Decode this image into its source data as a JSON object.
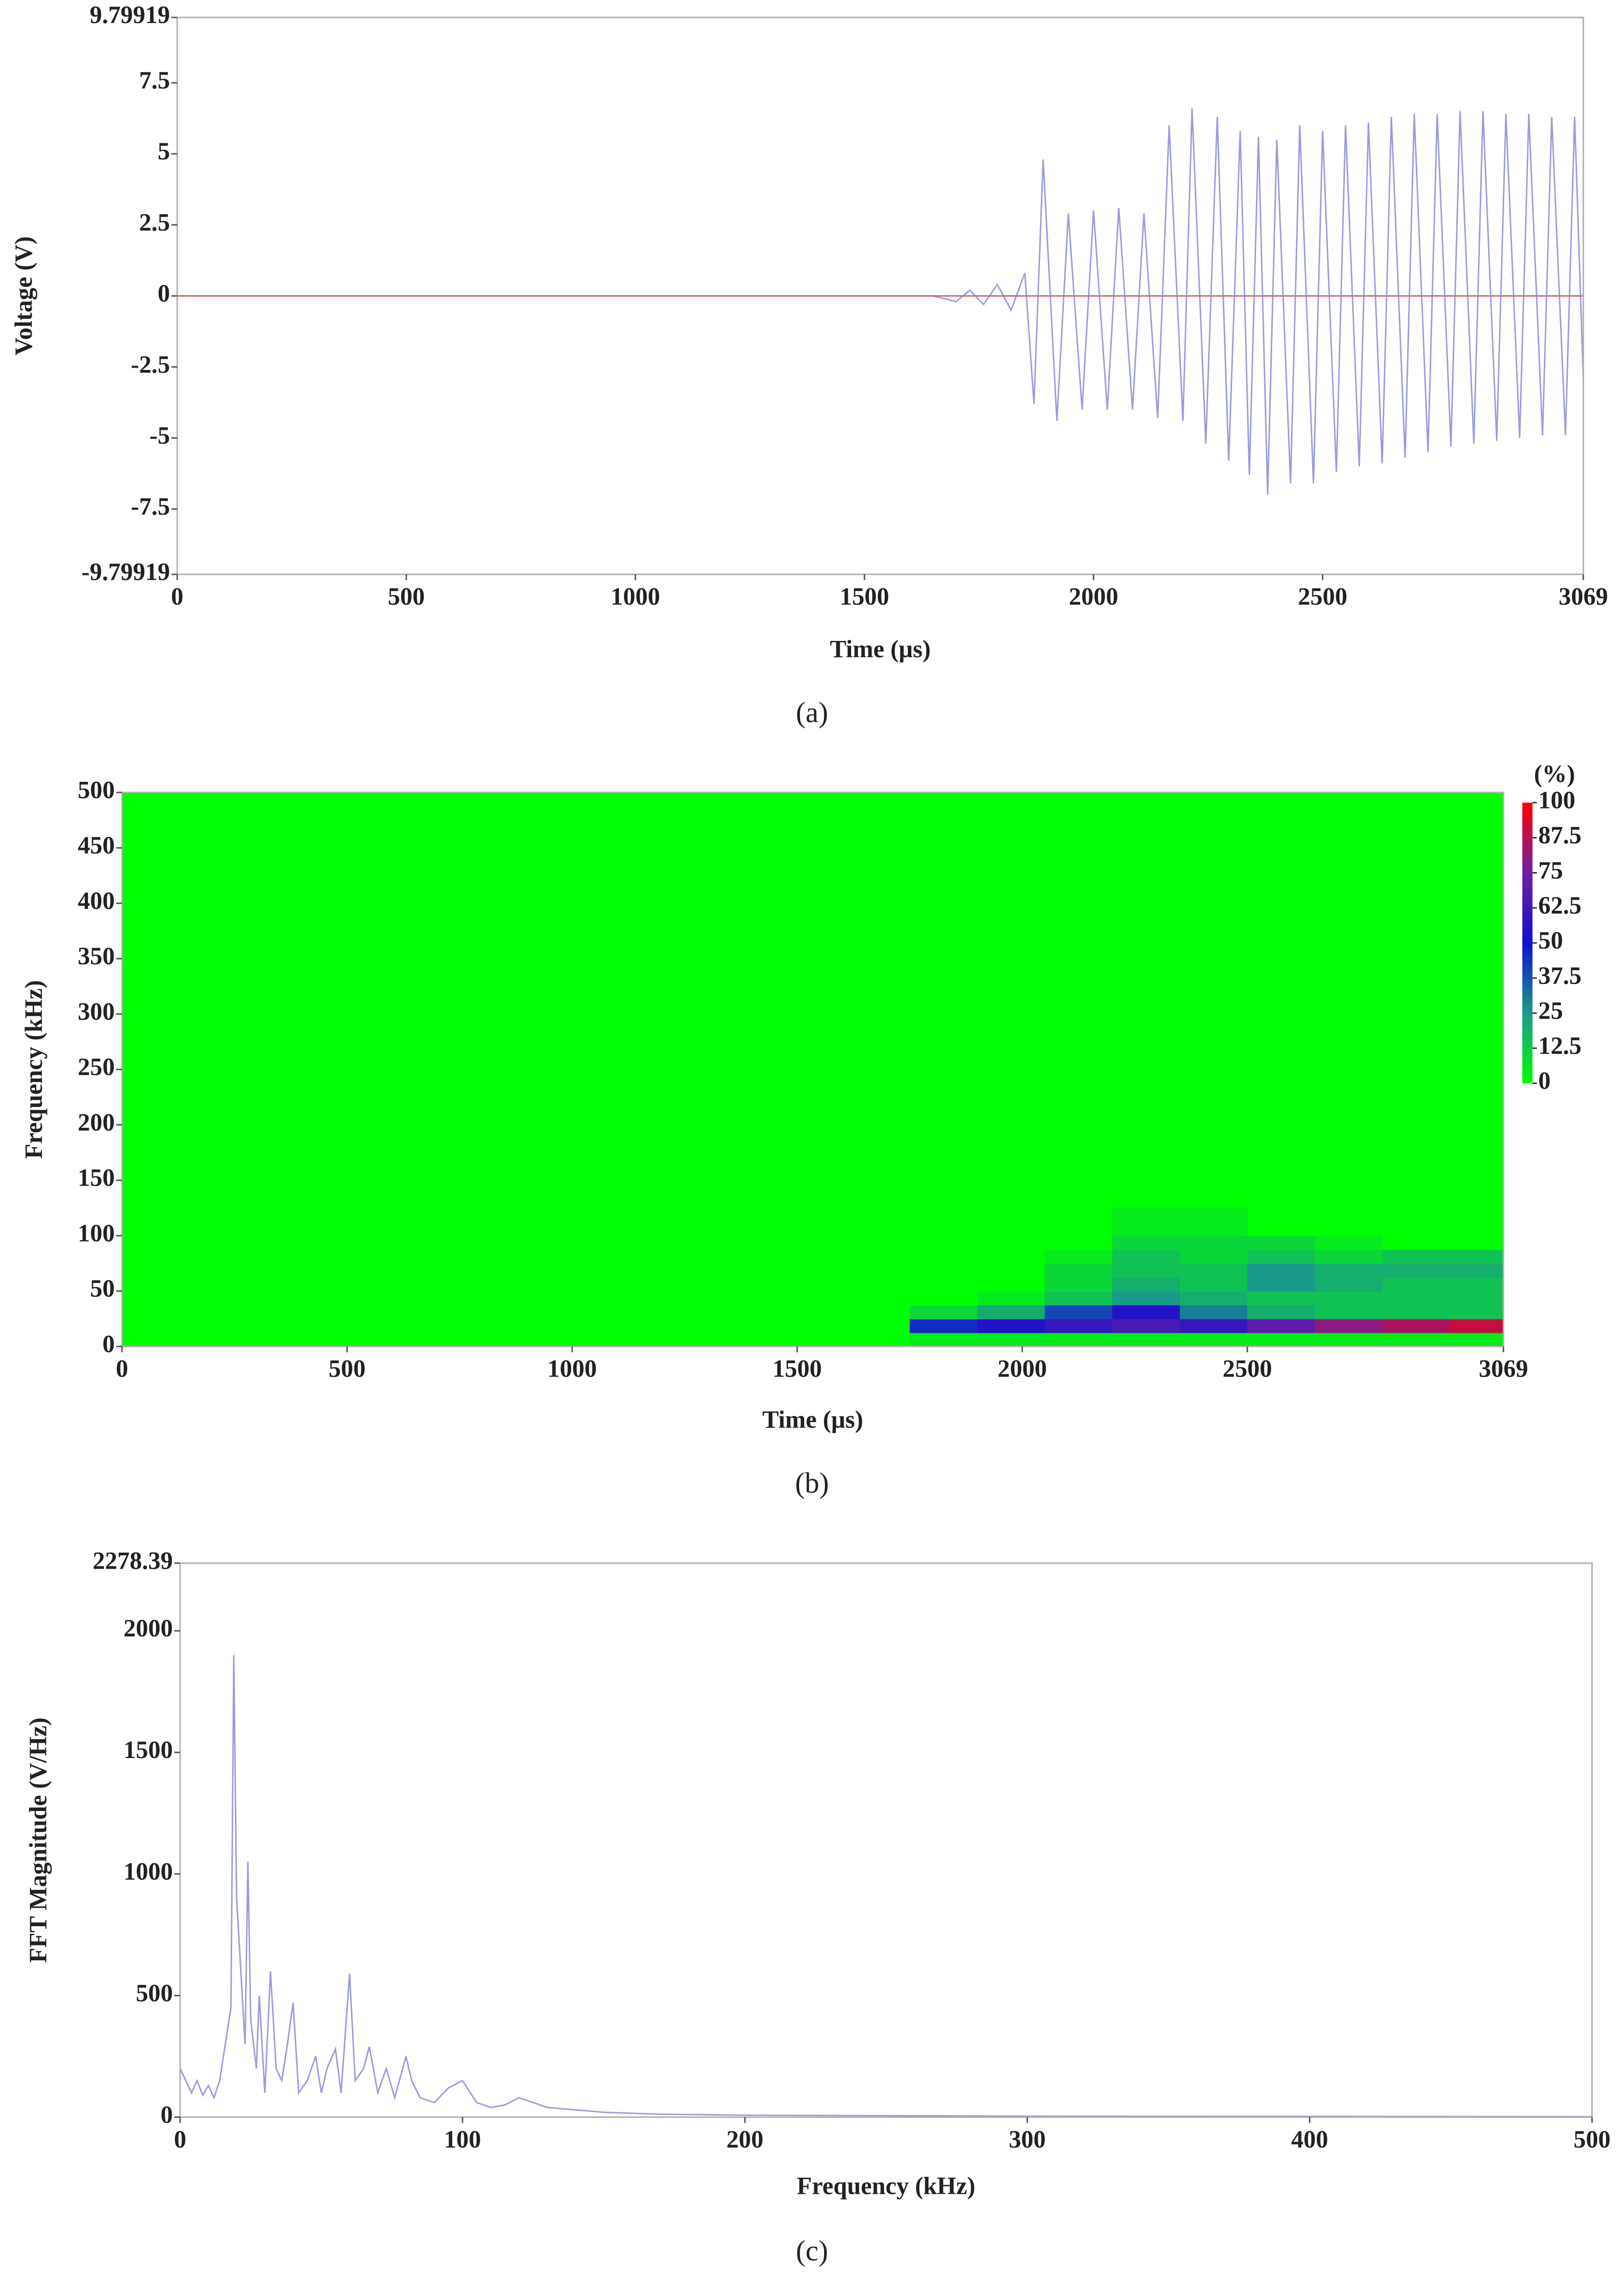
{
  "chart_data": [
    {
      "type": "line",
      "xlabel": "Time (µs)",
      "ylabel": "Voltage (V)",
      "caption": "(a)",
      "xlim": [
        0,
        3069
      ],
      "xticks": [
        0,
        500,
        1000,
        1500,
        2000,
        2500,
        3069
      ],
      "ylim": [
        -9.79919,
        9.79919
      ],
      "yticks": [
        -9.79919,
        -7.5,
        -5,
        -2.5,
        0,
        2.5,
        5,
        7.5,
        9.79919
      ],
      "series": [
        {
          "color": "#9a9ae0",
          "x": [
            0,
            1000,
            1500,
            1650,
            1700,
            1730,
            1760,
            1790,
            1820,
            1850,
            1870,
            1890,
            1920,
            1945,
            1975,
            2000,
            2030,
            2055,
            2085,
            2110,
            2140,
            2165,
            2195,
            2215,
            2245,
            2270,
            2295,
            2320,
            2340,
            2360,
            2380,
            2400,
            2430,
            2450,
            2480,
            2500,
            2530,
            2550,
            2580,
            2600,
            2630,
            2650,
            2680,
            2700,
            2730,
            2750,
            2780,
            2800,
            2830,
            2850,
            2880,
            2900,
            2930,
            2950,
            2980,
            3000,
            3030,
            3050,
            3069
          ],
          "values": [
            0,
            0,
            0,
            0,
            -0.2,
            0.2,
            -0.3,
            0.4,
            -0.5,
            0.8,
            -3.8,
            4.8,
            -4.4,
            2.9,
            -4.0,
            3.0,
            -4.0,
            3.1,
            -4.0,
            2.9,
            -4.3,
            6.0,
            -4.4,
            6.6,
            -5.2,
            6.3,
            -5.8,
            5.8,
            -6.3,
            5.6,
            -7.0,
            5.5,
            -6.6,
            6.0,
            -6.6,
            5.8,
            -6.2,
            6.0,
            -6.0,
            6.1,
            -5.9,
            6.3,
            -5.7,
            6.4,
            -5.5,
            6.4,
            -5.3,
            6.5,
            -5.2,
            6.5,
            -5.1,
            6.4,
            -5.0,
            6.4,
            -4.9,
            6.3,
            -4.9,
            6.3,
            -3.0
          ]
        },
        {
          "color": "#e06060",
          "x": [
            0,
            3069
          ],
          "values": [
            0,
            0
          ]
        }
      ]
    },
    {
      "type": "heatmap",
      "xlabel": "Time (µs)",
      "ylabel": "Frequency (kHz)",
      "caption": "(b)",
      "xlim": [
        0,
        3069
      ],
      "xticks": [
        0,
        500,
        1000,
        1500,
        2000,
        2500,
        3069
      ],
      "ylim": [
        0,
        500
      ],
      "yticks": [
        0,
        50,
        100,
        150,
        200,
        250,
        300,
        350,
        400,
        450,
        500
      ],
      "x_edges": [
        0,
        1750,
        1900,
        2050,
        2200,
        2350,
        2500,
        2650,
        2800,
        2950,
        3069
      ],
      "y_edges": [
        0,
        12.5,
        25,
        37.5,
        50,
        62.5,
        75,
        87.5,
        100,
        125,
        500
      ],
      "z": [
        [
          0,
          5,
          5,
          5,
          5,
          5,
          5,
          5,
          5,
          5
        ],
        [
          0,
          45,
          55,
          60,
          65,
          60,
          70,
          80,
          85,
          90
        ],
        [
          0,
          10,
          20,
          40,
          55,
          30,
          20,
          15,
          15,
          15
        ],
        [
          0,
          0,
          5,
          15,
          25,
          20,
          15,
          15,
          15,
          15
        ],
        [
          0,
          0,
          0,
          10,
          20,
          15,
          25,
          20,
          15,
          15
        ],
        [
          0,
          0,
          0,
          10,
          15,
          15,
          25,
          20,
          20,
          20
        ],
        [
          0,
          0,
          0,
          5,
          15,
          10,
          15,
          10,
          15,
          15
        ],
        [
          0,
          0,
          0,
          0,
          10,
          10,
          10,
          5,
          0,
          0
        ],
        [
          0,
          0,
          0,
          0,
          5,
          5,
          0,
          0,
          0,
          0
        ],
        [
          0,
          0,
          0,
          0,
          0,
          0,
          0,
          0,
          0,
          0
        ]
      ],
      "colorbar_label": "(%)",
      "clim": [
        0,
        100
      ],
      "cticks": [
        0,
        12.5,
        25,
        37.5,
        50,
        62.5,
        75,
        87.5,
        100
      ],
      "colorscale": [
        [
          0,
          "#00ff00"
        ],
        [
          25,
          "#1a9a8a"
        ],
        [
          50,
          "#1010d0"
        ],
        [
          75,
          "#7020a0"
        ],
        [
          100,
          "#ff0000"
        ]
      ]
    },
    {
      "type": "line",
      "xlabel": "Frequency (kHz)",
      "ylabel": "FFT Magnitude (V/Hz)",
      "caption": "(c)",
      "xlim": [
        0,
        500
      ],
      "xticks": [
        0,
        100,
        200,
        300,
        400,
        500
      ],
      "ylim": [
        0,
        2278.39
      ],
      "yticks": [
        0,
        500,
        1000,
        1500,
        2000,
        2278.39
      ],
      "series": [
        {
          "color": "#9a9ae0",
          "x": [
            0,
            2,
            4,
            6,
            8,
            10,
            12,
            14,
            16,
            18,
            19,
            20,
            21,
            22,
            23,
            24,
            25,
            27,
            28,
            30,
            32,
            34,
            36,
            38,
            40,
            42,
            45,
            48,
            50,
            52,
            55,
            57,
            60,
            62,
            65,
            67,
            70,
            73,
            76,
            80,
            82,
            85,
            90,
            95,
            100,
            105,
            110,
            115,
            120,
            125,
            130,
            140,
            150,
            170,
            200,
            250,
            300,
            400,
            500
          ],
          "values": [
            200,
            150,
            100,
            150,
            90,
            130,
            80,
            150,
            300,
            450,
            1900,
            900,
            700,
            500,
            300,
            1050,
            400,
            200,
            500,
            100,
            600,
            200,
            150,
            300,
            470,
            100,
            150,
            250,
            100,
            200,
            280,
            100,
            590,
            150,
            200,
            290,
            100,
            200,
            80,
            250,
            150,
            80,
            60,
            120,
            150,
            60,
            40,
            50,
            80,
            60,
            40,
            30,
            20,
            12,
            8,
            6,
            4,
            3,
            2
          ]
        }
      ]
    }
  ]
}
